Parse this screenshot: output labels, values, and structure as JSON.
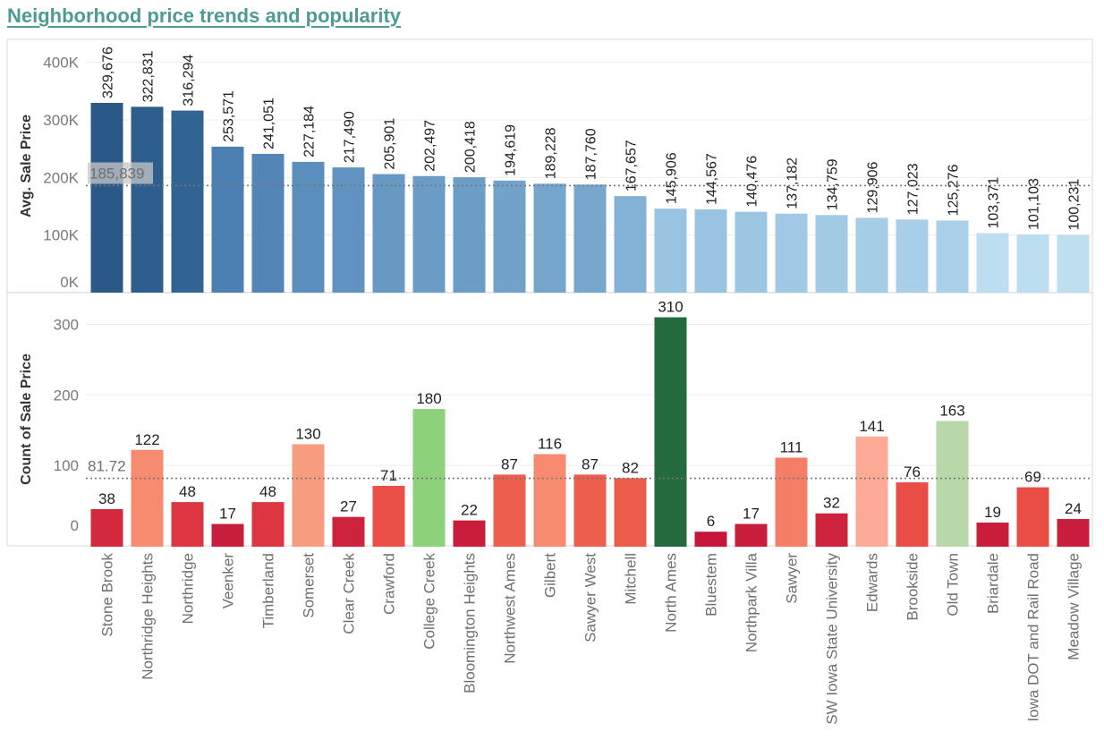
{
  "title": "Neighborhood price trends and popularity",
  "chart_data": [
    {
      "type": "bar",
      "ylabel": "Avg. Sale Price",
      "ylim": [
        0,
        440000
      ],
      "yticks": [
        0,
        100000,
        200000,
        300000,
        400000
      ],
      "ytick_labels": [
        "0K",
        "100K",
        "200K",
        "300K",
        "400K"
      ],
      "reference_line": {
        "value": 185839,
        "label": "185,839"
      },
      "categories": [
        "Stone Brook",
        "Northridge Heights",
        "Northridge",
        "Veenker",
        "Timberland",
        "Somerset",
        "Clear Creek",
        "Crawford",
        "College Creek",
        "Bloomington Heights",
        "Northwest Ames",
        "Gilbert",
        "Sawyer West",
        "Mitchell",
        "North Ames",
        "Bluestem",
        "Northpark Villa",
        "Sawyer",
        "SW Iowa State University",
        "Edwards",
        "Brookside",
        "Old Town",
        "Briardale",
        "Iowa DOT and Rail Road",
        "Meadow Village"
      ],
      "values": [
        329676,
        322831,
        316294,
        253571,
        241051,
        227184,
        217490,
        205901,
        202497,
        200418,
        194619,
        189228,
        187760,
        167657,
        145906,
        144567,
        140476,
        137182,
        134759,
        129906,
        127023,
        125276,
        103371,
        101103,
        100231
      ],
      "labels": [
        "329,676",
        "322,831",
        "316,294",
        "253,571",
        "241,051",
        "227,184",
        "217,490",
        "205,901",
        "202,497",
        "200,418",
        "194,619",
        "189,228",
        "187,760",
        "167,657",
        "145,906",
        "144,567",
        "140,476",
        "137,182",
        "134,759",
        "129,906",
        "127,023",
        "125,276",
        "103,371",
        "101,103",
        "100,231"
      ],
      "colors": [
        "#2b5987",
        "#2e5e8d",
        "#326493",
        "#4d80b2",
        "#5386b7",
        "#5a8ebc",
        "#6193c0",
        "#6799c3",
        "#6b9cc6",
        "#6c9dc7",
        "#72a2ca",
        "#76a6cc",
        "#78a7cd",
        "#84b2d6",
        "#98c4e2",
        "#98c4e2",
        "#9cc7e3",
        "#9fc9e4",
        "#a1cae5",
        "#a5cde6",
        "#a8cfe7",
        "#a9d0e8",
        "#bcdef0",
        "#bddef0",
        "#bedff0"
      ],
      "grid": true
    },
    {
      "type": "bar",
      "ylabel": "Count of Sale Price",
      "ylim": [
        -14,
        345
      ],
      "yticks": [
        0,
        100,
        200,
        300
      ],
      "ytick_labels": [
        "0",
        "100",
        "200",
        "300"
      ],
      "reference_line": {
        "value": 81.72,
        "label": "81.72"
      },
      "categories": [
        "Stone Brook",
        "Northridge Heights",
        "Northridge",
        "Veenker",
        "Timberland",
        "Somerset",
        "Clear Creek",
        "Crawford",
        "College Creek",
        "Bloomington Heights",
        "Northwest Ames",
        "Gilbert",
        "Sawyer West",
        "Mitchell",
        "North Ames",
        "Bluestem",
        "Northpark Villa",
        "Sawyer",
        "SW Iowa State University",
        "Edwards",
        "Brookside",
        "Old Town",
        "Briardale",
        "Iowa DOT and Rail Road",
        "Meadow Village"
      ],
      "values": [
        38,
        122,
        48,
        17,
        48,
        130,
        27,
        71,
        180,
        22,
        87,
        116,
        87,
        82,
        310,
        6,
        17,
        111,
        32,
        141,
        76,
        163,
        19,
        69,
        24
      ],
      "colors": [
        "#d3293e",
        "#f68b6f",
        "#dc3640",
        "#c81d3b",
        "#dc3640",
        "#f89c80",
        "#cd233c",
        "#ea5048",
        "#8dd17a",
        "#c81d3b",
        "#ee5e4c",
        "#f78a70",
        "#ee5e4c",
        "#ec5c4a",
        "#236b3f",
        "#c3163a",
        "#c81d3b",
        "#f47f66",
        "#cd233c",
        "#fca995",
        "#e94d46",
        "#b9d8a9",
        "#c81d3b",
        "#ea4d46",
        "#c81d3b"
      ],
      "grid": true
    }
  ]
}
